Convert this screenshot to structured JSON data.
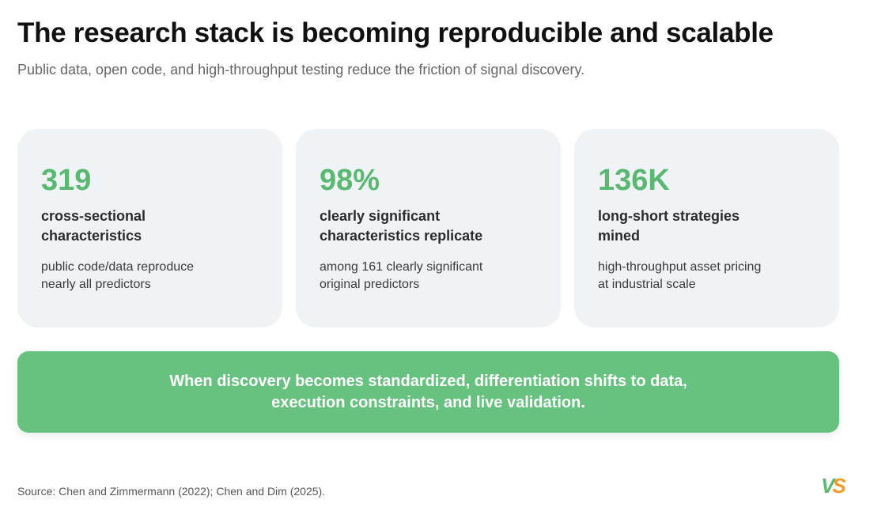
{
  "header": {
    "title": "The research stack is becoming reproducible and scalable",
    "subtitle": "Public data, open code, and high-throughput testing reduce the friction of signal discovery."
  },
  "cards": [
    {
      "stat": "319",
      "label_lines": [
        "cross-sectional",
        "characteristics"
      ],
      "description_lines": [
        "public code/data reproduce",
        "nearly all predictors"
      ]
    },
    {
      "stat": "98%",
      "label_lines": [
        "clearly significant",
        "characteristics replicate"
      ],
      "description_lines": [
        "among 161 clearly significant",
        "original predictors"
      ]
    },
    {
      "stat": "136K",
      "label_lines": [
        "long-short strategies",
        "mined"
      ],
      "description_lines": [
        "high-throughput asset pricing",
        "at industrial scale"
      ]
    }
  ],
  "callout": {
    "lines": [
      "When discovery becomes standardized, differentiation shifts to data,",
      "execution constraints, and live validation."
    ]
  },
  "footer": {
    "source": "Source: Chen and Zimmermann (2022); Chen and Dim (2025).",
    "logo": [
      "V",
      "S"
    ]
  }
}
